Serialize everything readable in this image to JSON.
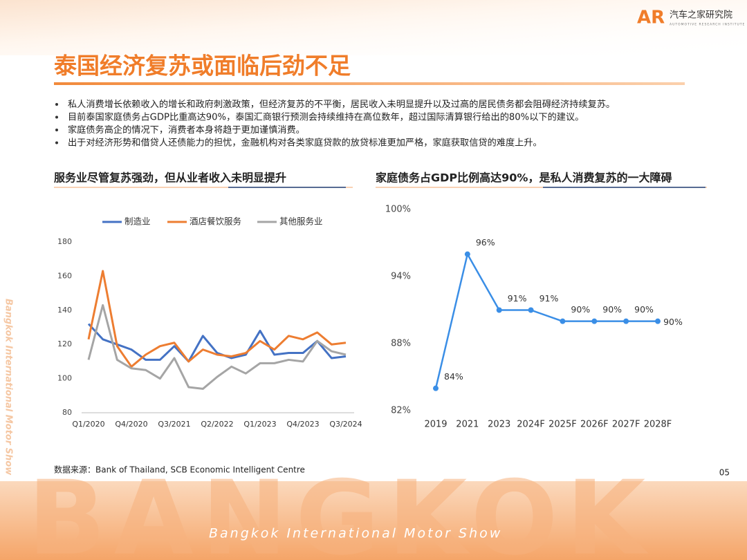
{
  "header": {
    "title": "泰国经济复苏或面临后劲不足",
    "logo_mark": "AR",
    "logo": "汽车之家研究院",
    "logo_sub": "AUTOMOTIVE RESEARCH INSTITUTE"
  },
  "bullets": [
    "私人消费增长依赖收入的增长和政府刺激政策，但经济复苏的不平衡，居民收入未明显提升以及过高的居民债务都会阻碍经济持续复苏。",
    "目前泰国家庭债务占GDP比重高达90%，泰国汇商银行预测会持续维持在高位数年，超过国际清算银行给出的80%以下的建议。",
    "家庭债务高企的情况下，消费者本身将趋于更加谨慎消费。",
    "出于对经济形势和借贷人还债能力的担忧，金融机构对各类家庭贷款的放贷标准更加严格，家庭获取信贷的难度上升。"
  ],
  "chart_data": [
    {
      "type": "line",
      "title": "服务业尽管复苏强劲，但从业者收入未明显提升",
      "categories": [
        "Q1/2020",
        null,
        null,
        "Q4/2020",
        null,
        null,
        "Q3/2021",
        null,
        null,
        "Q2/2022",
        null,
        null,
        "Q1/2023",
        null,
        null,
        "Q4/2023",
        null,
        null,
        "Q3/2024"
      ],
      "series": [
        {
          "name": "制造业",
          "color": "#4472c4",
          "values": [
            132,
            123,
            120,
            117,
            111,
            111,
            119,
            110,
            125,
            115,
            112,
            114,
            128,
            114,
            115,
            115,
            122,
            112,
            113
          ]
        },
        {
          "name": "酒店餐饮服务",
          "color": "#ed7d31",
          "values": [
            123,
            163,
            119,
            107,
            114,
            119,
            121,
            110,
            117,
            114,
            113,
            115,
            122,
            117,
            125,
            123,
            127,
            120,
            121
          ]
        },
        {
          "name": "其他服务业",
          "color": "#a5a5a5",
          "values": [
            111,
            143,
            111,
            106,
            105,
            100,
            112,
            95,
            94,
            101,
            107,
            103,
            109,
            109,
            111,
            110,
            122,
            116,
            114
          ]
        }
      ],
      "ylim": [
        80,
        180
      ],
      "yticks": [
        80,
        100,
        120,
        140,
        160,
        180
      ],
      "grid": false,
      "legend": "top"
    },
    {
      "type": "line",
      "title": "家庭债务占GDP比例高达90%，是私人消费复苏的一大障碍",
      "categories": [
        "2019",
        "2021",
        "2023",
        "2024F",
        "2025F",
        "2026F",
        "2027F",
        "2028F"
      ],
      "values": [
        84,
        96,
        91,
        91,
        90,
        90,
        90,
        90
      ],
      "value_labels": [
        "84%",
        "96%",
        "91%",
        "91%",
        "90%",
        "90%",
        "90%",
        "90%"
      ],
      "color": "#3a8ee6",
      "ylim": [
        82,
        100
      ],
      "yticks": [
        {
          "value": 82,
          "label": "82%"
        },
        {
          "value": 88,
          "label": "88%"
        },
        {
          "value": 94,
          "label": "94%"
        },
        {
          "value": 100,
          "label": "100%"
        }
      ],
      "grid": false
    }
  ],
  "source": "数据来源：Bank of Thailand, SCB Economic Intelligent Centre",
  "page_number": "05",
  "side_text": "Bangkok International Motor Show",
  "footer": {
    "banner": "BANGKOK",
    "event": "Bangkok International Motor Show"
  }
}
